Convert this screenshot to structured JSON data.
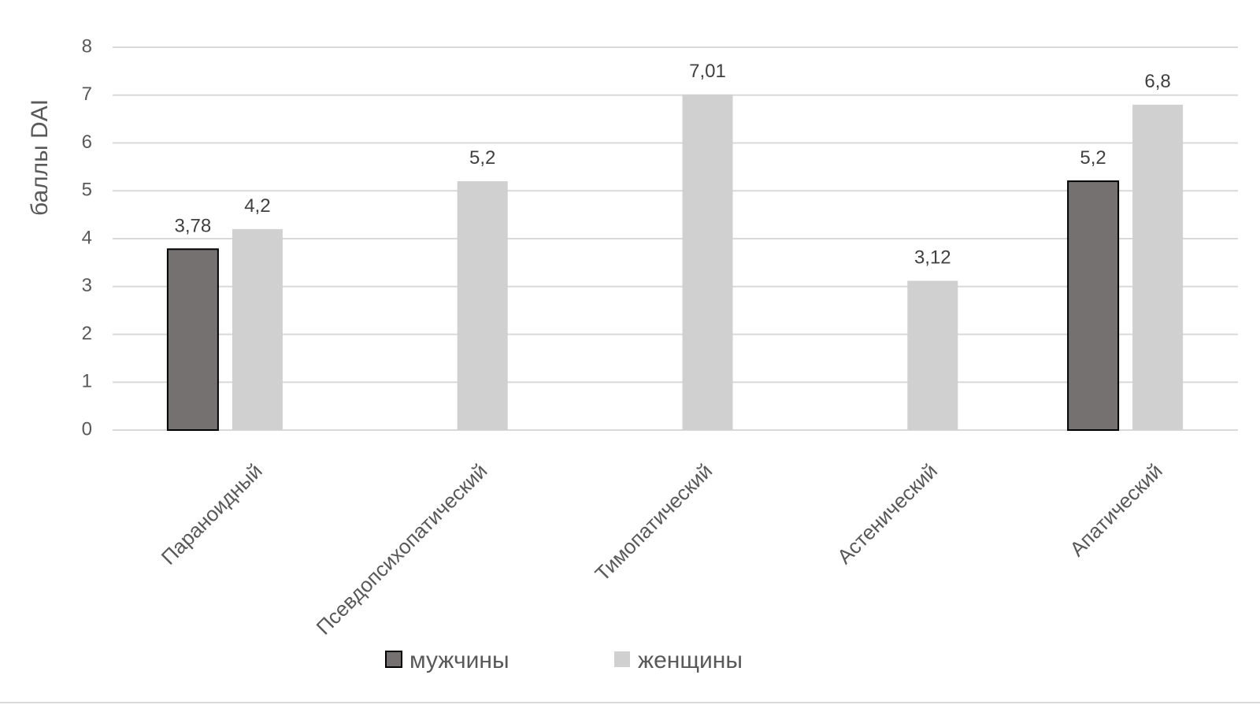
{
  "chart_data": {
    "type": "bar",
    "ylabel": "баллы DAI",
    "xlabel": "",
    "ylim": [
      0,
      8
    ],
    "yticks": [
      "0",
      "1",
      "2",
      "3",
      "4",
      "5",
      "6",
      "7",
      "8"
    ],
    "grid": true,
    "legend_position": "bottom",
    "categories": [
      "Параноидный",
      "Псевдопсихопатический",
      "Тимопатический",
      "Астенический",
      "Апатический"
    ],
    "series": [
      {
        "name": "мужчины",
        "color": "#767171",
        "values": [
          3.78,
          null,
          null,
          null,
          5.2
        ],
        "labels": [
          "3,78",
          "",
          "",
          "",
          "5,2"
        ]
      },
      {
        "name": "женщины",
        "color": "#d0d0d0",
        "values": [
          4.2,
          5.2,
          7.01,
          3.12,
          6.8
        ],
        "labels": [
          "4,2",
          "5,2",
          "7,01",
          "3,12",
          "6,8"
        ]
      }
    ]
  }
}
